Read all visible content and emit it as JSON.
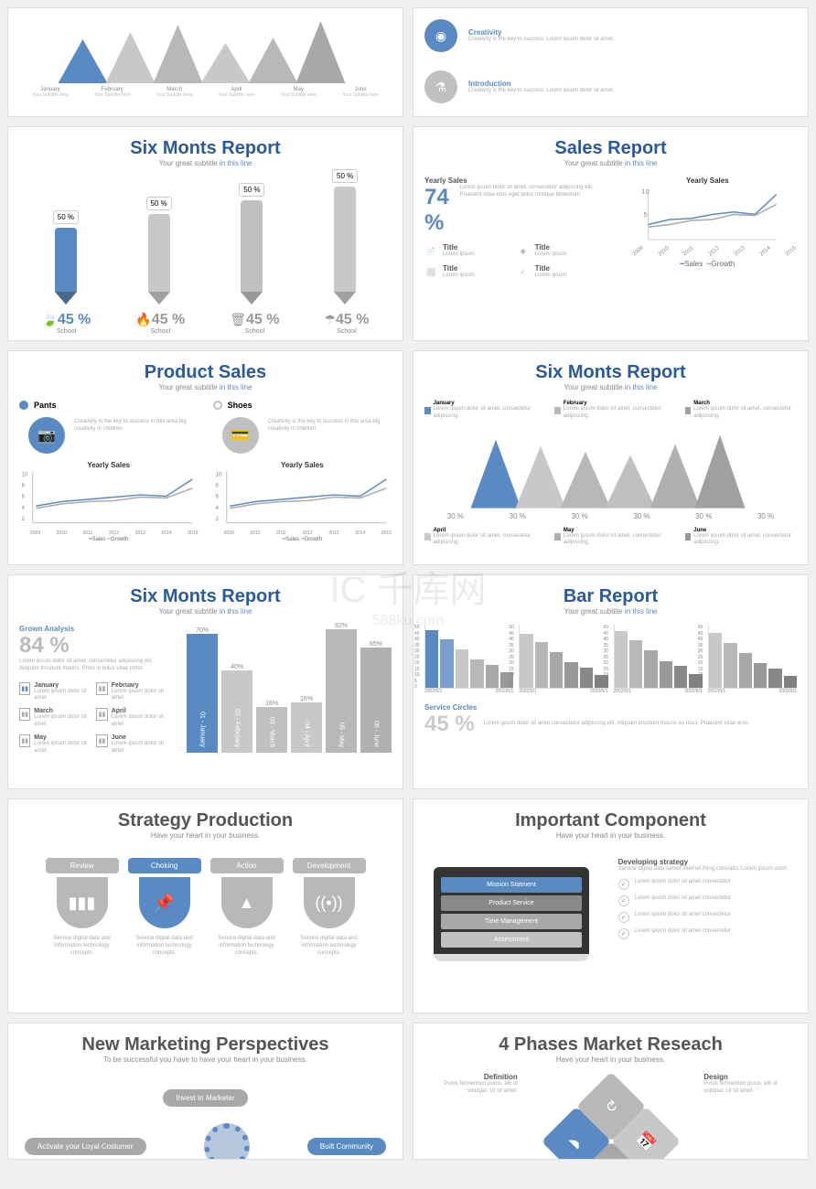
{
  "colors": {
    "blue": "#5a8ac4",
    "gray": "#b8b8b8",
    "lightgray": "#d0d0d0",
    "darkgray": "#888",
    "bg": "#ffffff"
  },
  "watermark": {
    "logo": "IC 千库网",
    "sub": "588ku.com"
  },
  "s0": {
    "months": [
      "January",
      "February",
      "March",
      "April",
      "May",
      "June"
    ],
    "sub": "Your Subtitle here",
    "peak_heights": [
      48,
      56,
      64,
      44,
      50,
      68
    ],
    "peak_colors": [
      "#5a8ac4",
      "#c8c8c8",
      "#b8b8b8",
      "#c8c8c8",
      "#b8b8b8",
      "#a8a8a8"
    ]
  },
  "s1": {
    "items": [
      {
        "title": "Creativity",
        "icon": "◉",
        "color": "#5a8ac4",
        "desc": "Creativity is the key to success. Lorem ipsum dolor sit amet."
      },
      {
        "title": "Introduction",
        "icon": "⚗",
        "color": "#c0c0c0",
        "desc": "Creativity is the key to success. Lorem ipsum dolor sit amet."
      }
    ]
  },
  "s2": {
    "title": "Six Monts Report",
    "sub": "Your great subtitle",
    "sub2": "in this line",
    "pencils": [
      {
        "pct": "50 %",
        "h": 70,
        "color": "#5a8ac4",
        "tip": "#4a6a8a"
      },
      {
        "pct": "50 %",
        "h": 85,
        "color": "#c8c8c8",
        "tip": "#a0a0a0"
      },
      {
        "pct": "50 %",
        "h": 100,
        "color": "#c0c0c0",
        "tip": "#989898"
      },
      {
        "pct": "50 %",
        "h": 115,
        "color": "#c8c8c8",
        "tip": "#a0a0a0"
      }
    ],
    "icons": [
      {
        "glyph": "🍃",
        "pct": "45 %",
        "lbl": "School",
        "color": "#5a8ac4"
      },
      {
        "glyph": "🔥",
        "pct": "45 %",
        "lbl": "School",
        "color": "#999"
      },
      {
        "glyph": "🗑",
        "pct": "45 %",
        "lbl": "School",
        "color": "#999"
      },
      {
        "glyph": "☂",
        "pct": "45 %",
        "lbl": "School",
        "color": "#999"
      }
    ]
  },
  "s3": {
    "title": "Sales Report",
    "sub": "Your great subtitle",
    "sub2": "in this line",
    "heading": "Yearly Sales",
    "pct": "74 %",
    "desc": "Lorem ipsum dolor sit amet, consectetur adipiscing elit. Praesent vitae eros eget tellus tristique bibendum.",
    "tiles": [
      {
        "icon": "📄",
        "t": "Title"
      },
      {
        "icon": "◆",
        "t": "Title"
      },
      {
        "icon": "⬜",
        "t": "Title"
      },
      {
        "icon": "✓",
        "t": "Title"
      }
    ],
    "chart_title": "Yearly Sales",
    "years": [
      "2009",
      "2010",
      "2011",
      "2012",
      "2013",
      "2014",
      "2015"
    ],
    "yticks": [
      "10",
      "5"
    ],
    "sales": [
      3,
      4,
      4.2,
      5,
      5.5,
      5,
      9
    ],
    "growth": [
      2.5,
      3,
      3.8,
      4,
      5,
      4.8,
      7
    ],
    "legend": [
      "Sales",
      "Growth"
    ]
  },
  "s4": {
    "title": "Product Sales",
    "sub": "Your great subtitle",
    "sub2": "in this line",
    "cols": [
      {
        "radio": "Pants",
        "color": "#5a8ac4",
        "icon": "📷",
        "desc": "Creativity is the key to success in this area big creativity in children",
        "chart_title": "Yearly Sales"
      },
      {
        "radio": "Shoes",
        "color": "#c0c0c0",
        "icon": "💳",
        "desc": "Creativity is the key to success in this area big creativity in children",
        "chart_title": "Yearly Sales"
      }
    ],
    "years": [
      "2009",
      "2010",
      "2011",
      "2012",
      "2013",
      "2014",
      "2015"
    ],
    "yticks": [
      "10",
      "8",
      "6",
      "4",
      "2"
    ],
    "sales": [
      3,
      4,
      4.5,
      5,
      5.5,
      5.2,
      9
    ],
    "growth": [
      2.5,
      3.5,
      4,
      4.2,
      5,
      4.8,
      7
    ],
    "legend": [
      "Sales",
      "Growth"
    ]
  },
  "s5": {
    "title": "Six Monts Report",
    "sub": "Your great subtitle",
    "sub2": "in this line",
    "keys": [
      {
        "c": "#5a8ac4",
        "t": "January",
        "d": "Lorem ipsum dolor sit amet, consectetur adipiscing."
      },
      {
        "c": "#b8b8b8",
        "t": "February",
        "d": "Lorem ipsum dolor sit amet, consectetur adipiscing."
      },
      {
        "c": "#a0a0a0",
        "t": "March",
        "d": "Lorem ipsum dolor sit amet, consectetur adipiscing."
      }
    ],
    "keys2": [
      {
        "c": "#c8c8c8",
        "t": "April",
        "d": "Lorem ipsum dolor sit amet, consectetur adipiscing."
      },
      {
        "c": "#b0b0b0",
        "t": "May",
        "d": "Lorem ipsum dolor sit amet, consectetur adipiscing."
      },
      {
        "c": "#989898",
        "t": "June",
        "d": "Lorem ipsum dolor sit amet, consectetur adipiscing."
      }
    ],
    "peak_heights": [
      75,
      68,
      62,
      58,
      70,
      80
    ],
    "peak_colors": [
      "#5a8ac4",
      "#c8c8c8",
      "#b8b8b8",
      "#c0c0c0",
      "#b0b0b0",
      "#a0a0a0"
    ],
    "pct": "30 %"
  },
  "s6": {
    "title": "Six Monts Report",
    "sub": "Your great subtitle",
    "sub2": "in this line",
    "heading": "Grown Analysis",
    "pct": "84 %",
    "desc": "Lorem ipsum dolor sit amet, consectetur adipiscing elit. Aliquam tincidunt mauris. Proin in tellus vitae tortor.",
    "months": [
      {
        "m": "January",
        "n": "01"
      },
      {
        "m": "February",
        "n": "02"
      },
      {
        "m": "March",
        "n": "03"
      },
      {
        "m": "April",
        "n": "04"
      },
      {
        "m": "May",
        "n": "05"
      },
      {
        "m": "June",
        "n": "06"
      }
    ],
    "bars": [
      {
        "pct": "70%",
        "h": 130,
        "c": "#5a8ac4",
        "lbl": "01 - January"
      },
      {
        "pct": "40%",
        "h": 90,
        "c": "#c8c8c8",
        "lbl": "02 - February"
      },
      {
        "pct": "16%",
        "h": 50,
        "c": "#c0c0c0",
        "lbl": "03 - March"
      },
      {
        "pct": "16%",
        "h": 55,
        "c": "#c8c8c8",
        "lbl": "04 - April"
      },
      {
        "pct": "92%",
        "h": 135,
        "c": "#b8b8b8",
        "lbl": "05 - May"
      },
      {
        "pct": "65%",
        "h": 115,
        "c": "#b0b0b0",
        "lbl": "06 - June"
      }
    ],
    "month_desc": "Lorem ipsum dolor sit amet"
  },
  "s7": {
    "title": "Bar Report",
    "sub": "Your great subtitle",
    "sub2": "in this line",
    "yticks": [
      "50",
      "45",
      "40",
      "35",
      "30",
      "25",
      "20",
      "15",
      "10",
      "5",
      "0"
    ],
    "xlabels": [
      "2002/5/1",
      "2002/6/1"
    ],
    "panels": [
      [
        45,
        38,
        30,
        22,
        18,
        12
      ],
      [
        42,
        36,
        28,
        20,
        16,
        10
      ],
      [
        44,
        37,
        29,
        21,
        17,
        11
      ],
      [
        43,
        35,
        27,
        19,
        15,
        9
      ]
    ],
    "panel_colors": [
      [
        "#5a8ac4",
        "#7aa0d0",
        "#c8c8c8",
        "#b8b8b8",
        "#a8a8a8",
        "#989898"
      ],
      [
        "#c8c8c8",
        "#b8b8b8",
        "#a8a8a8",
        "#989898",
        "#888",
        "#808080"
      ],
      [
        "#c8c8c8",
        "#b8b8b8",
        "#a8a8a8",
        "#989898",
        "#888",
        "#808080"
      ],
      [
        "#c8c8c8",
        "#b8b8b8",
        "#a8a8a8",
        "#989898",
        "#888",
        "#808080"
      ]
    ],
    "heading": "Service Circles",
    "pct": "45 %",
    "desc": "Lorem ipsum dolor sit amet consectetur adipiscing elit. Aliquam tincidunt mauris eu risus. Praesent vitae eros."
  },
  "s8": {
    "title": "Strategy Production",
    "sub": "Have your heart in your business.",
    "items": [
      {
        "tab": "Review",
        "c": "#b8b8b8",
        "icon": "▮▮▮"
      },
      {
        "tab": "Choking",
        "c": "#5a8ac4",
        "icon": "📌"
      },
      {
        "tab": "Action",
        "c": "#b8b8b8",
        "icon": "▲"
      },
      {
        "tab": "Development",
        "c": "#b8b8b8",
        "icon": "((•))"
      }
    ],
    "desc": "Service digital data and information technology concepts."
  },
  "s9": {
    "title": "Important Component",
    "sub": "Have your heart in your business.",
    "laptop": [
      {
        "t": "Mission Statment",
        "c": "#5a8ac4"
      },
      {
        "t": "Product Service",
        "c": "#8a8a8a"
      },
      {
        "t": "Time Management",
        "c": "#a8a8a8"
      },
      {
        "t": "Assessment",
        "c": "#c0c0c0"
      }
    ],
    "heading": "Developing strategy",
    "hdesc": "Service digital data server internet thing concepts. Lorem ipsum dolor.",
    "checks": [
      "Lorem ipsum dolor sit amet consectetur",
      "Lorem ipsum dolor sit amet consectetur",
      "Lorem ipsum dolor sit amet consectetur",
      "Lorem ipsum dolor sit amet consectetur"
    ]
  },
  "s10": {
    "title": "New Marketing Perspectives",
    "sub": "To be successful you have to have your heart in your business.",
    "btns": [
      {
        "t": "Invest In Marketer",
        "c": "#a8a8a8"
      },
      {
        "t": "Activate your Loyal Costumer",
        "c": "#a8a8a8"
      },
      {
        "t": "Built Community",
        "c": "#5a8ac4"
      }
    ]
  },
  "s11": {
    "title": "4 Phases Market Reseach",
    "sub": "Have your heart in your business.",
    "labels": [
      {
        "t": "Definition",
        "d": "Purus fermentum purus. elit ut volutpat. Ut sit amet."
      },
      {
        "t": "Design",
        "d": "Purus fermentum purus. elit ut volutpat. Ut sit amet."
      }
    ],
    "diamonds": [
      {
        "c": "#b8b8b8",
        "icon": "↻",
        "pos": "top"
      },
      {
        "c": "#5a8ac4",
        "icon": "☁",
        "pos": "left"
      },
      {
        "c": "#c8c8c8",
        "icon": "📅",
        "pos": "right"
      },
      {
        "c": "#a8a8a8",
        "icon": "⬇",
        "pos": "bottom"
      }
    ]
  }
}
